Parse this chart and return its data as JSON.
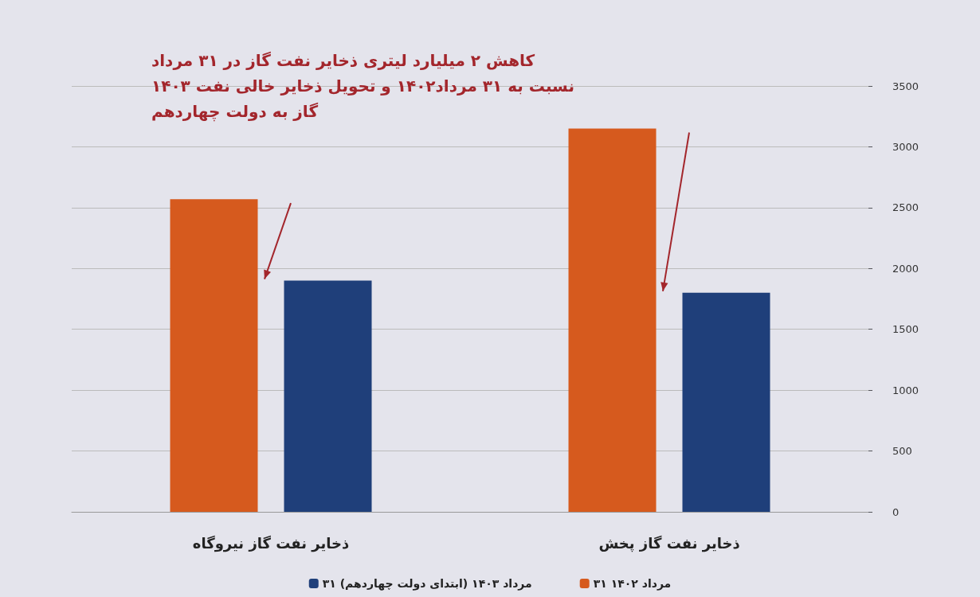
{
  "chart_data": {
    "type": "bar",
    "title": "کاهش ۲ میلیارد لیتری ذخایر نفت گاز در ۳۱ مرداد ۱۴۰۳ نسبت به ۳۱ مرداد۱۴۰۲ و تحویل ذخایر خالی نفت گاز به دولت چهاردهم",
    "categories": [
      "ذخایر نفت گاز نیروگاه",
      "ذخایر نفت گاز پخش"
    ],
    "series": [
      {
        "name": "۳۱ مرداد ۱۴۰۲",
        "color": "#d65a1e",
        "values": [
          2570,
          3150
        ]
      },
      {
        "name": "۳۱ مرداد ۱۴۰۳ (ابتدای دولت چهاردهم)",
        "color": "#1f3f7a",
        "values": [
          1900,
          1800
        ]
      }
    ],
    "ylim": [
      0,
      3500
    ],
    "yticks": [
      0,
      500,
      1000,
      1500,
      2000,
      2500,
      3000,
      3500
    ],
    "grid": "y",
    "legend": "bottom"
  }
}
